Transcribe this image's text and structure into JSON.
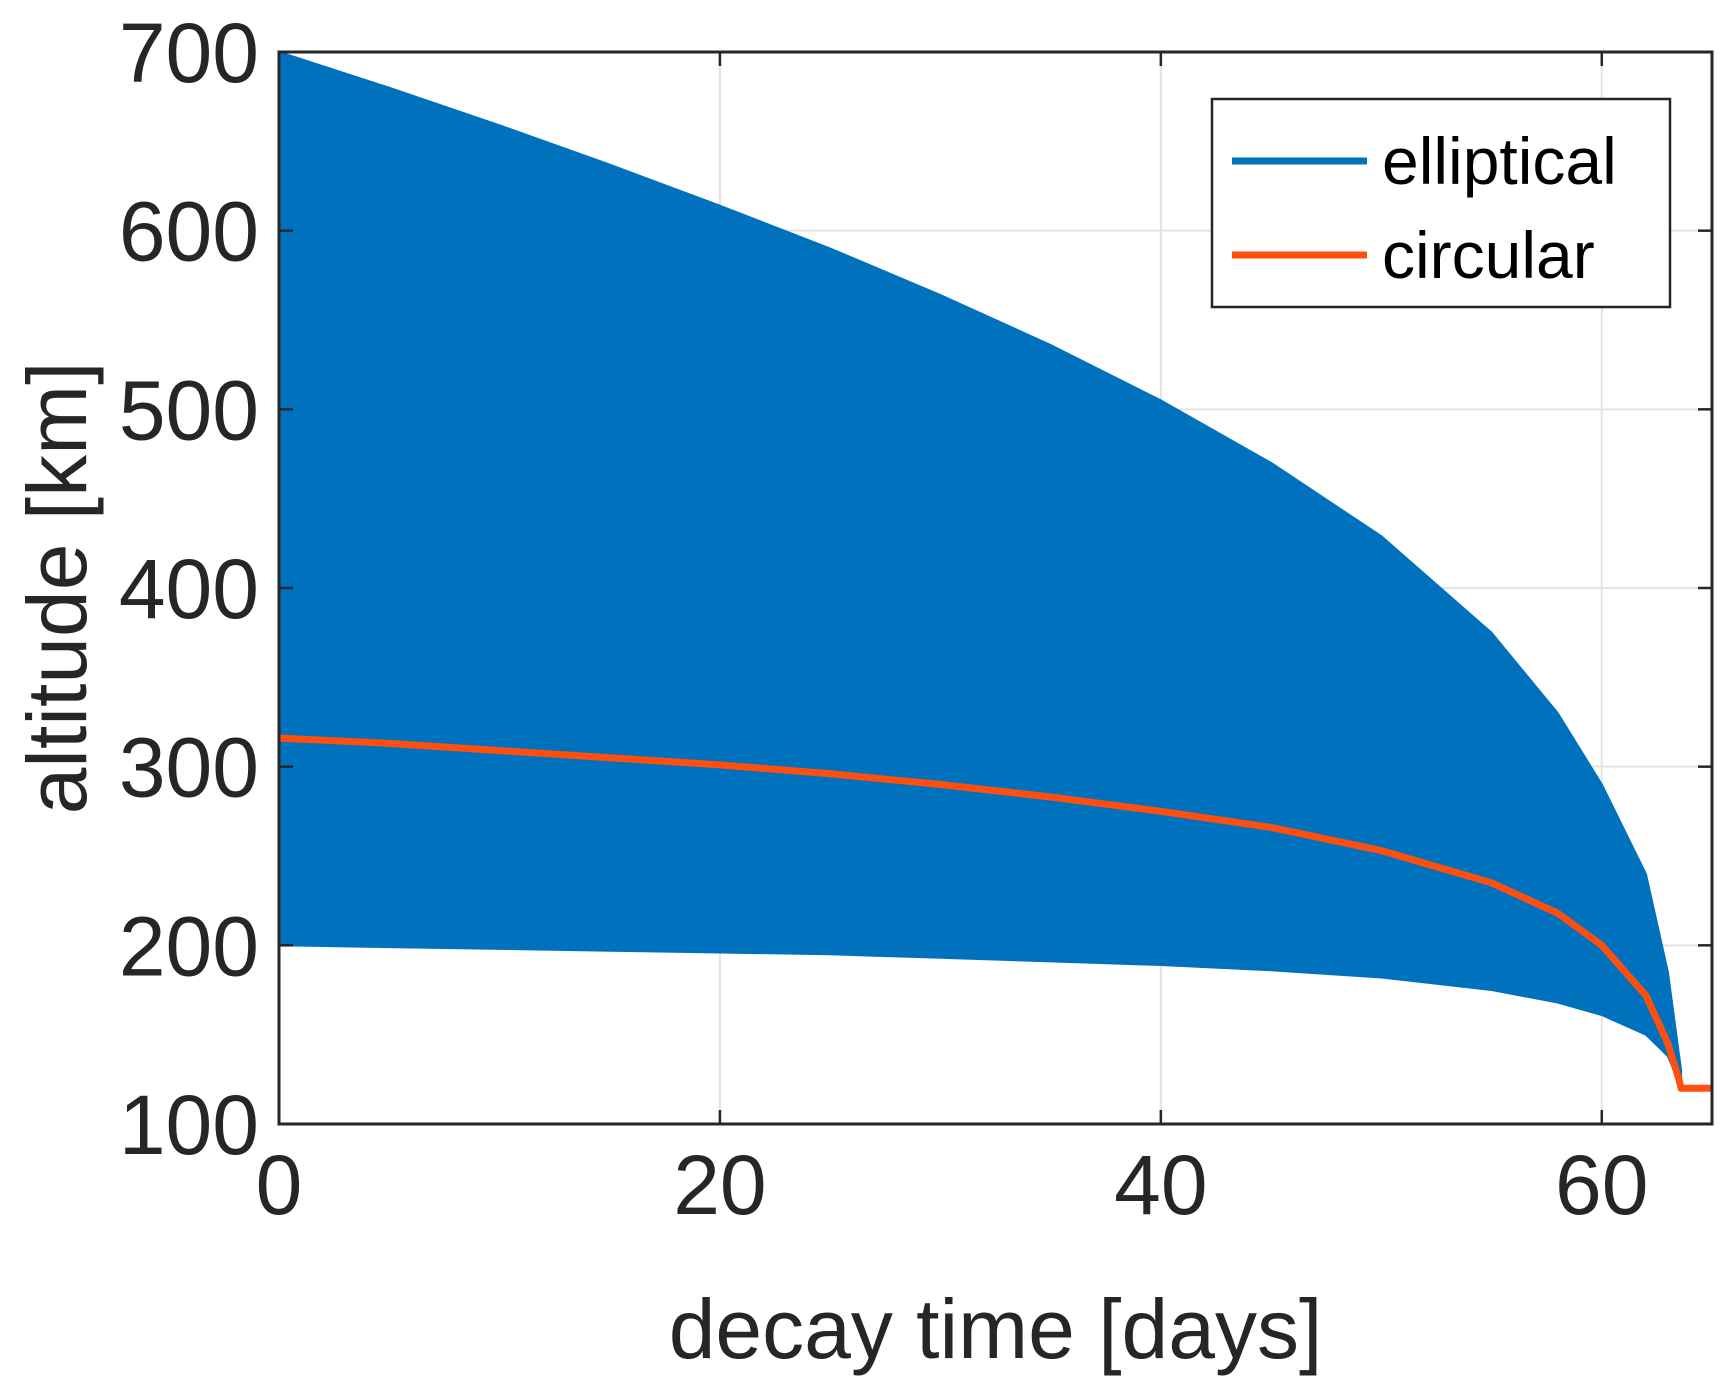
{
  "chart_data": {
    "type": "area",
    "title": "",
    "xlabel": "decay time [days]",
    "ylabel": "altitude [km]",
    "xlim": [
      0,
      65
    ],
    "ylim": [
      100,
      700
    ],
    "x_ticks": [
      0,
      20,
      40,
      60
    ],
    "y_ticks": [
      100,
      200,
      300,
      400,
      500,
      600,
      700
    ],
    "x_tick_labels": [
      "0",
      "20",
      "40",
      "60"
    ],
    "y_tick_labels": [
      "100",
      "200",
      "300",
      "400",
      "500",
      "600",
      "700"
    ],
    "grid": true,
    "legend_position": "top-right",
    "series": [
      {
        "name": "elliptical",
        "type": "band",
        "color": "#0072BD",
        "x": [
          0,
          5,
          10,
          15,
          20,
          25,
          30,
          35,
          40,
          45,
          50,
          55,
          58,
          60,
          62,
          63,
          63.6
        ],
        "upper": [
          700,
          680,
          659,
          637,
          614,
          590,
          564,
          536,
          505,
          470,
          429,
          375,
          330,
          290,
          240,
          185,
          130
        ],
        "lower": [
          200,
          199,
          198,
          197,
          196,
          195,
          193,
          191,
          189,
          186,
          182,
          175,
          168,
          161,
          150,
          138,
          120
        ]
      },
      {
        "name": "circular",
        "type": "line",
        "color": "#FF4F0E",
        "x": [
          0,
          5,
          10,
          15,
          20,
          25,
          30,
          35,
          40,
          45,
          50,
          55,
          58,
          60,
          62,
          63,
          63.5,
          63.6,
          65
        ],
        "values": [
          316,
          313,
          309,
          305,
          301,
          296,
          290,
          283,
          275,
          266,
          253,
          235,
          218,
          200,
          172,
          145,
          125,
          120,
          120
        ]
      }
    ]
  }
}
